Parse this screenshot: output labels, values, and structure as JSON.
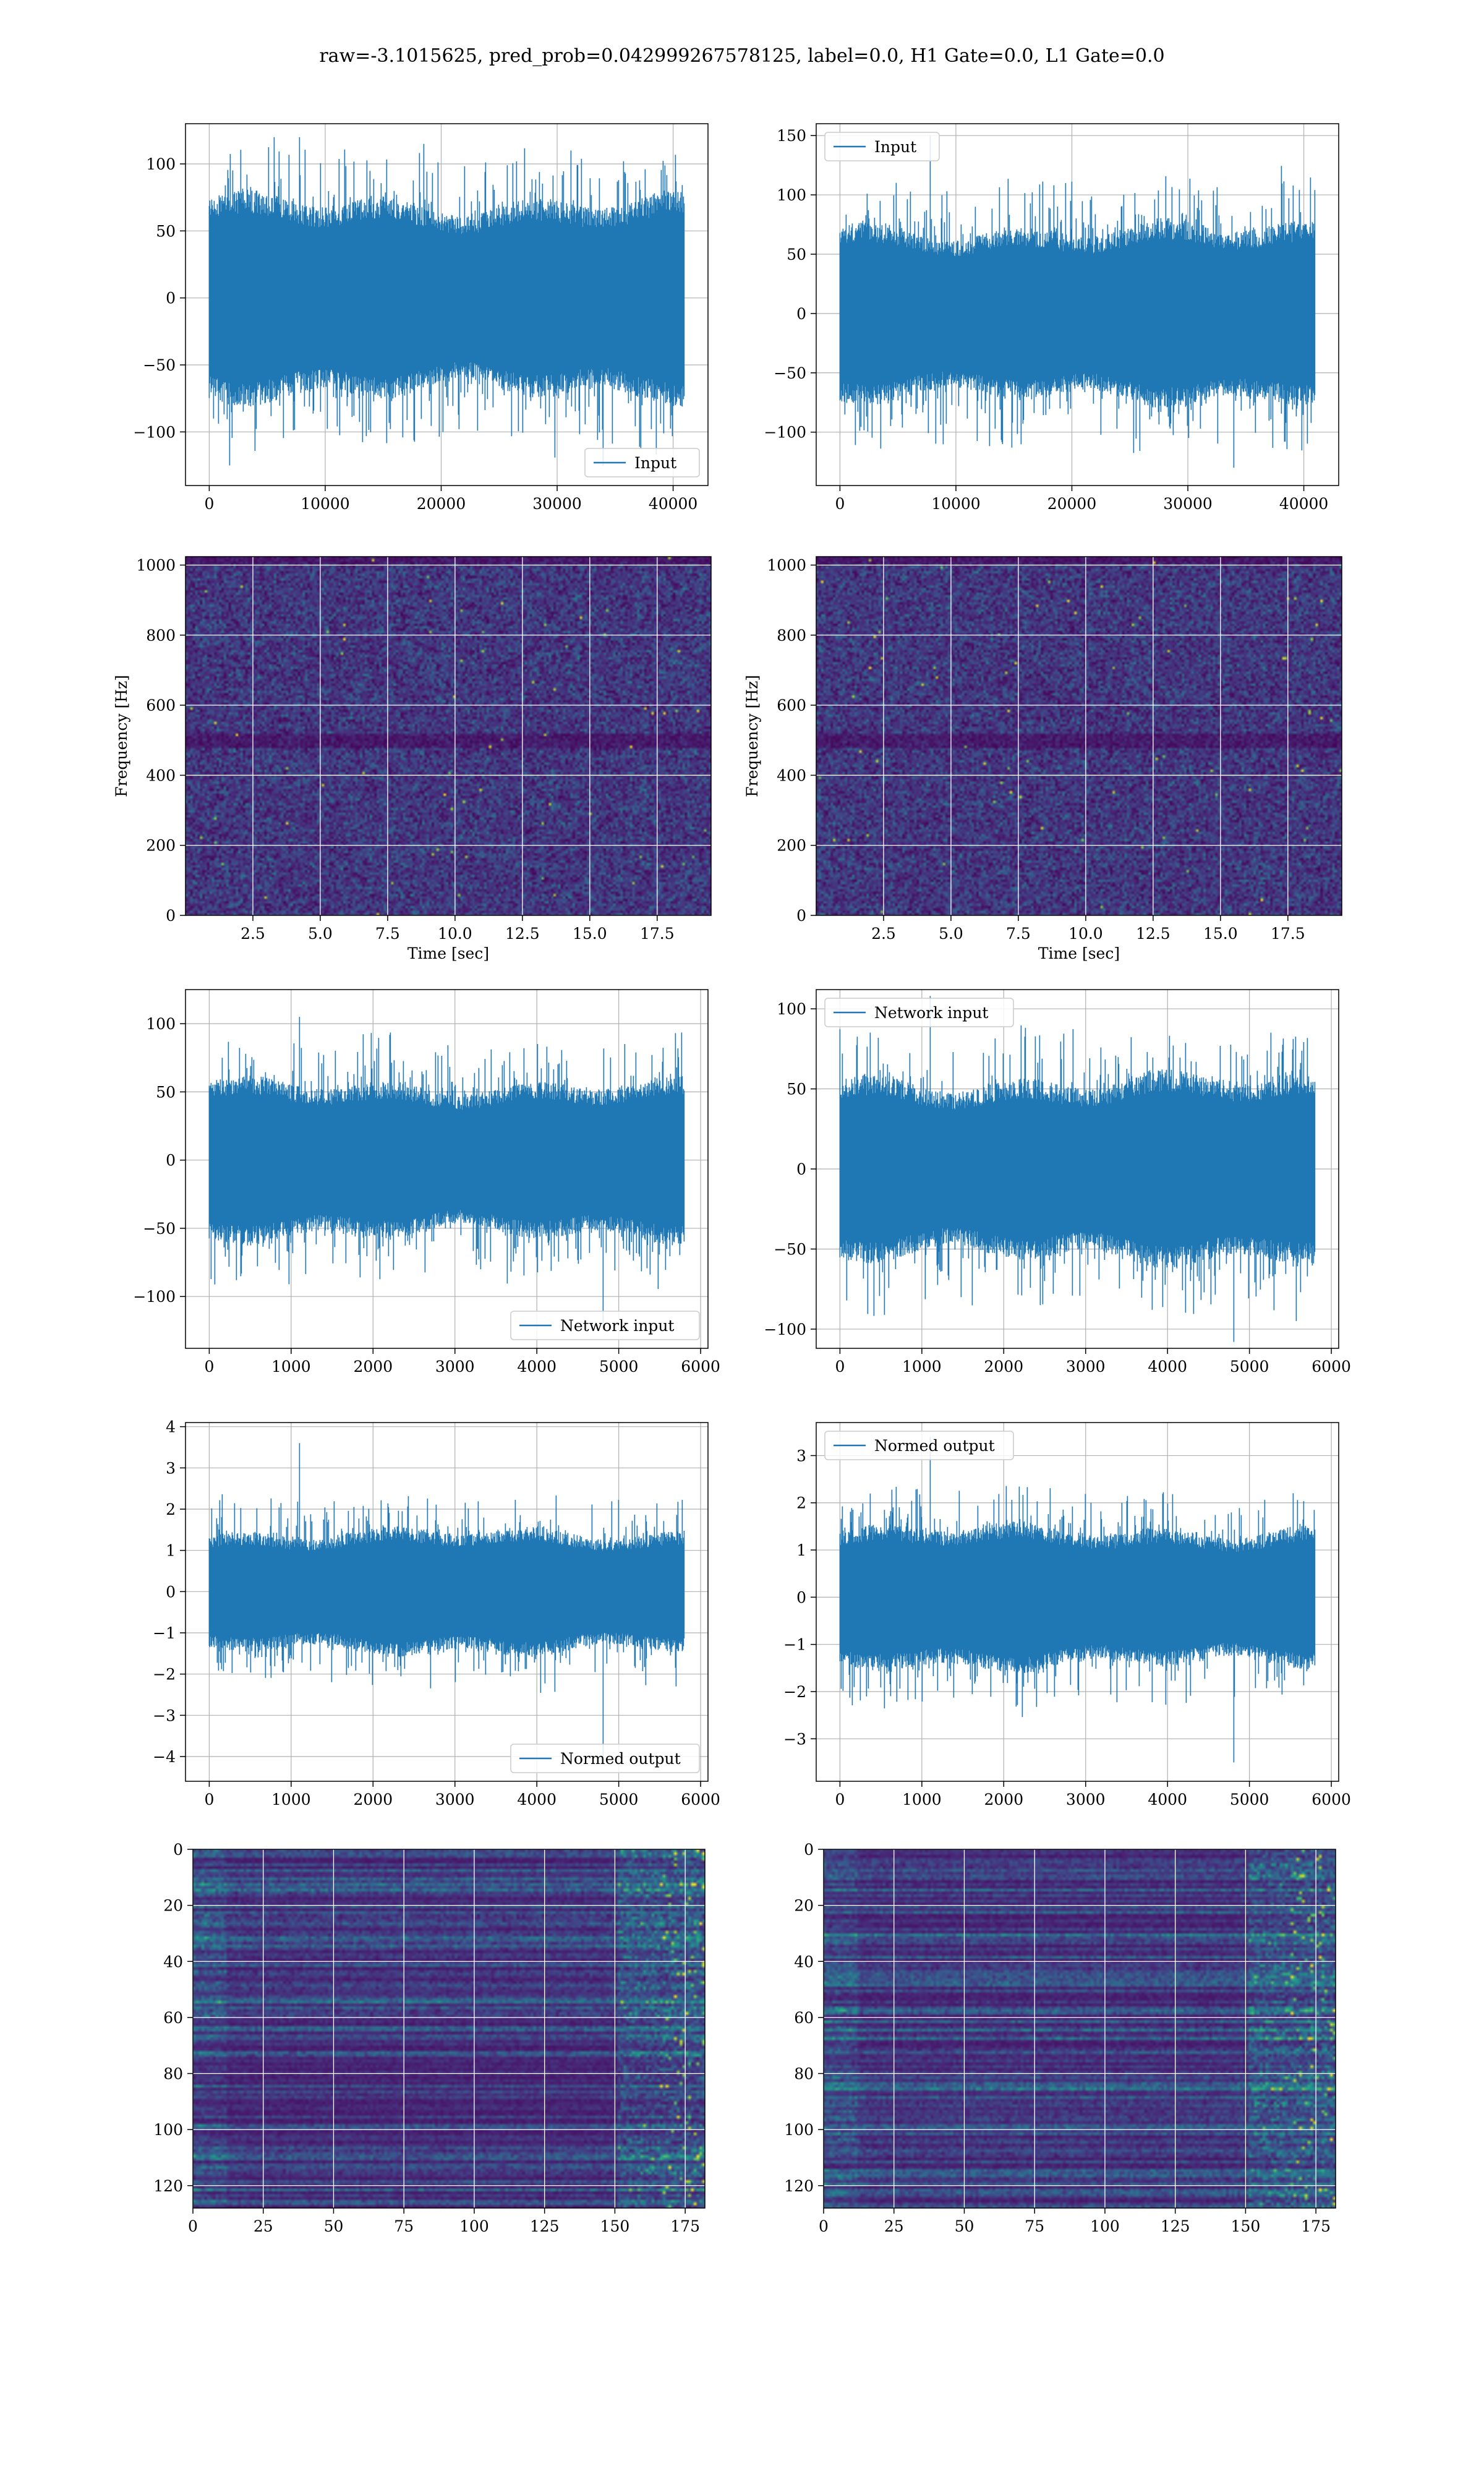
{
  "title": "raw=-3.1015625, pred_prob=0.042999267578125, label=0.0, H1 Gate=0.0, L1 Gate=0.0",
  "colors": {
    "line": "#1f77b4",
    "grid": "#b0b0b0",
    "viridis_low": "#440154",
    "viridis_high": "#fde725"
  },
  "chart_data": [
    {
      "id": "input-h1",
      "type": "line",
      "series": [
        {
          "name": "Input",
          "n_samples": 40960,
          "amplitude_typical": 65,
          "min": -125,
          "max": 120
        }
      ],
      "xlim": [
        -2048,
        43008
      ],
      "ylim": [
        -140,
        130
      ],
      "xticks": [
        0,
        10000,
        20000,
        30000,
        40000
      ],
      "xtick_labels": [
        "0",
        "10000",
        "20000",
        "30000",
        "40000"
      ],
      "yticks": [
        -100,
        -50,
        0,
        50,
        100
      ],
      "ytick_labels": [
        "−100",
        "−50",
        "0",
        "50",
        "100"
      ],
      "legend": "lower right",
      "grid": true
    },
    {
      "id": "input-l1",
      "type": "line",
      "series": [
        {
          "name": "Input",
          "n_samples": 40960,
          "amplitude_typical": 65,
          "min": -130,
          "max": 150
        }
      ],
      "xlim": [
        -2048,
        43008
      ],
      "ylim": [
        -145,
        160
      ],
      "xticks": [
        0,
        10000,
        20000,
        30000,
        40000
      ],
      "xtick_labels": [
        "0",
        "10000",
        "20000",
        "30000",
        "40000"
      ],
      "yticks": [
        -100,
        -50,
        0,
        50,
        100,
        150
      ],
      "ytick_labels": [
        "−100",
        "−50",
        "0",
        "50",
        "100",
        "150"
      ],
      "legend": "upper left",
      "grid": true
    },
    {
      "id": "spectrogram-h1",
      "type": "heatmap",
      "colormap": "viridis",
      "xlim": [
        0,
        19.5
      ],
      "ylim": [
        0,
        1024
      ],
      "xticks": [
        2.5,
        5.0,
        7.5,
        10.0,
        12.5,
        15.0,
        17.5
      ],
      "xtick_labels": [
        "2.5",
        "5.0",
        "7.5",
        "10.0",
        "12.5",
        "15.0",
        "17.5"
      ],
      "yticks": [
        0,
        200,
        400,
        600,
        800,
        1000
      ],
      "ytick_labels": [
        "0",
        "200",
        "400",
        "600",
        "800",
        "1000"
      ],
      "xlabel": "Time [sec]",
      "ylabel": "Frequency [Hz]",
      "grid": true
    },
    {
      "id": "spectrogram-l1",
      "type": "heatmap",
      "colormap": "viridis",
      "xlim": [
        0,
        19.5
      ],
      "ylim": [
        0,
        1024
      ],
      "xticks": [
        2.5,
        5.0,
        7.5,
        10.0,
        12.5,
        15.0,
        17.5
      ],
      "xtick_labels": [
        "2.5",
        "5.0",
        "7.5",
        "10.0",
        "12.5",
        "15.0",
        "17.5"
      ],
      "yticks": [
        0,
        200,
        400,
        600,
        800,
        1000
      ],
      "ytick_labels": [
        "0",
        "200",
        "400",
        "600",
        "800",
        "1000"
      ],
      "xlabel": "Time [sec]",
      "ylabel": "Frequency [Hz]",
      "grid": true
    },
    {
      "id": "network-input-h1",
      "type": "line",
      "series": [
        {
          "name": "Network input",
          "n_samples": 5800,
          "amplitude_typical": 50,
          "min": -125,
          "max": 105
        }
      ],
      "xlim": [
        -290,
        6090
      ],
      "ylim": [
        -138,
        125
      ],
      "xticks": [
        0,
        1000,
        2000,
        3000,
        4000,
        5000,
        6000
      ],
      "xtick_labels": [
        "0",
        "1000",
        "2000",
        "3000",
        "4000",
        "5000",
        "6000"
      ],
      "yticks": [
        -100,
        -50,
        0,
        50,
        100
      ],
      "ytick_labels": [
        "−100",
        "−50",
        "0",
        "50",
        "100"
      ],
      "legend": "lower right",
      "grid": true
    },
    {
      "id": "network-input-l1",
      "type": "line",
      "series": [
        {
          "name": "Network input",
          "n_samples": 5800,
          "amplitude_typical": 50,
          "min": -108,
          "max": 108
        }
      ],
      "xlim": [
        -290,
        6090
      ],
      "ylim": [
        -112,
        112
      ],
      "xticks": [
        0,
        1000,
        2000,
        3000,
        4000,
        5000,
        6000
      ],
      "xtick_labels": [
        "0",
        "1000",
        "2000",
        "3000",
        "4000",
        "5000",
        "6000"
      ],
      "yticks": [
        -100,
        -50,
        0,
        50,
        100
      ],
      "ytick_labels": [
        "−100",
        "−50",
        "0",
        "50",
        "100"
      ],
      "legend": "upper left",
      "grid": true
    },
    {
      "id": "normed-output-h1",
      "type": "line",
      "series": [
        {
          "name": "Normed output",
          "n_samples": 5800,
          "amplitude_typical": 1.3,
          "min": -4.2,
          "max": 3.6
        }
      ],
      "xlim": [
        -290,
        6090
      ],
      "ylim": [
        -4.6,
        4.1
      ],
      "xticks": [
        0,
        1000,
        2000,
        3000,
        4000,
        5000,
        6000
      ],
      "xtick_labels": [
        "0",
        "1000",
        "2000",
        "3000",
        "4000",
        "5000",
        "6000"
      ],
      "yticks": [
        -4,
        -3,
        -2,
        -1,
        0,
        1,
        2,
        3,
        4
      ],
      "ytick_labels": [
        "−4",
        "−3",
        "−2",
        "−1",
        "0",
        "1",
        "2",
        "3",
        "4"
      ],
      "legend": "lower right",
      "grid": true
    },
    {
      "id": "normed-output-l1",
      "type": "line",
      "series": [
        {
          "name": "Normed output",
          "n_samples": 5800,
          "amplitude_typical": 1.3,
          "min": -3.5,
          "max": 3.4
        }
      ],
      "xlim": [
        -290,
        6090
      ],
      "ylim": [
        -3.9,
        3.7
      ],
      "xticks": [
        0,
        1000,
        2000,
        3000,
        4000,
        5000,
        6000
      ],
      "xtick_labels": [
        "0",
        "1000",
        "2000",
        "3000",
        "4000",
        "5000",
        "6000"
      ],
      "yticks": [
        -3,
        -2,
        -1,
        0,
        1,
        2,
        3
      ],
      "ytick_labels": [
        "−3",
        "−2",
        "−1",
        "0",
        "1",
        "2",
        "3"
      ],
      "legend": "upper left",
      "grid": true
    },
    {
      "id": "feature-map-h1",
      "type": "heatmap",
      "colormap": "viridis",
      "rows": 128,
      "cols": 182,
      "xlim": [
        0,
        182
      ],
      "ylim": [
        128,
        0
      ],
      "xticks": [
        0,
        25,
        50,
        75,
        100,
        125,
        150,
        175
      ],
      "xtick_labels": [
        "0",
        "25",
        "50",
        "75",
        "100",
        "125",
        "150",
        "175"
      ],
      "yticks": [
        0,
        20,
        40,
        60,
        80,
        100,
        120
      ],
      "ytick_labels": [
        "0",
        "20",
        "40",
        "60",
        "80",
        "100",
        "120"
      ],
      "grid": true
    },
    {
      "id": "feature-map-l1",
      "type": "heatmap",
      "colormap": "viridis",
      "rows": 128,
      "cols": 182,
      "xlim": [
        0,
        182
      ],
      "ylim": [
        128,
        0
      ],
      "xticks": [
        0,
        25,
        50,
        75,
        100,
        125,
        150,
        175
      ],
      "xtick_labels": [
        "0",
        "25",
        "50",
        "75",
        "100",
        "125",
        "150",
        "175"
      ],
      "yticks": [
        0,
        20,
        40,
        60,
        80,
        100,
        120
      ],
      "ytick_labels": [
        "0",
        "20",
        "40",
        "60",
        "80",
        "100",
        "120"
      ],
      "grid": true
    }
  ]
}
